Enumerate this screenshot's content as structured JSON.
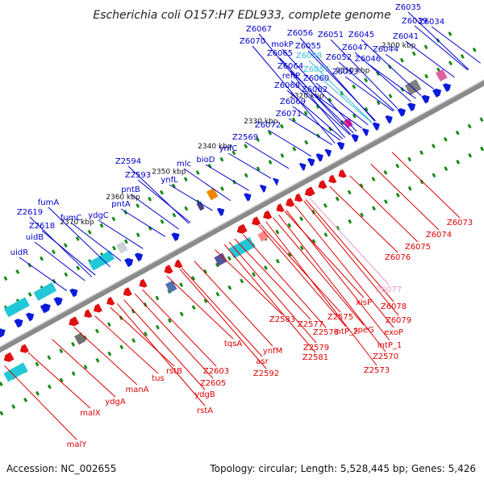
{
  "title": "Escherichia coli O157:H7 EDL933, complete genome",
  "footer": {
    "accession": "Accession: NC_002655",
    "summary": "Topology: circular; Length: 5,528,445 bp; Genes: 5,426"
  },
  "ticks": [
    "2300 kbp",
    "2310 kbp",
    "2320 kbp",
    "2330 kbp",
    "2340 kbp",
    "2350 kbp",
    "2360 kbp",
    "2370 kbp"
  ],
  "colors": {
    "forward_label": "#0000cc",
    "reverse_label": "#dd0000",
    "pseudo_forward": "#33bbdd",
    "pseudo_reverse": "#ee99cc",
    "backbone": "#888888"
  },
  "forward_genes": [
    {
      "name": "Z6035"
    },
    {
      "name": "Z6034"
    },
    {
      "name": "Z6039"
    },
    {
      "name": "Z6041"
    },
    {
      "name": "Z6044"
    },
    {
      "name": "Z6045"
    },
    {
      "name": "Z6046"
    },
    {
      "name": "Z6047"
    },
    {
      "name": "Z6051"
    },
    {
      "name": "Z6052"
    },
    {
      "name": "Z6053"
    },
    {
      "name": "Z6056"
    },
    {
      "name": "Z6055"
    },
    {
      "name": "Z6058",
      "pseudo": true
    },
    {
      "name": "Z6057",
      "pseudo": true
    },
    {
      "name": "Z6067"
    },
    {
      "name": "Z6070"
    },
    {
      "name": "mokP"
    },
    {
      "name": "Z6065"
    },
    {
      "name": "Z6064"
    },
    {
      "name": "renP"
    },
    {
      "name": "Z6060"
    },
    {
      "name": "Z6068"
    },
    {
      "name": "Z6062"
    },
    {
      "name": "Z6069"
    },
    {
      "name": "Z6071"
    },
    {
      "name": "Z6072"
    },
    {
      "name": "Z2569"
    },
    {
      "name": "ynfC"
    },
    {
      "name": "bioD"
    },
    {
      "name": "mlc"
    },
    {
      "name": "ynfL"
    },
    {
      "name": "Z2594"
    },
    {
      "name": "Z2593"
    },
    {
      "name": "pntB"
    },
    {
      "name": "pntA"
    },
    {
      "name": "fumA"
    },
    {
      "name": "fumC"
    },
    {
      "name": "ydgC"
    },
    {
      "name": "Z2619"
    },
    {
      "name": "Z2618"
    },
    {
      "name": "uidB"
    },
    {
      "name": "uidR"
    }
  ],
  "reverse_genes": [
    {
      "name": "Z6073"
    },
    {
      "name": "Z6074"
    },
    {
      "name": "Z6075"
    },
    {
      "name": "Z6076"
    },
    {
      "name": "Z6077",
      "pseudo": true
    },
    {
      "name": "xisP"
    },
    {
      "name": "Z6078"
    },
    {
      "name": "Z6079"
    },
    {
      "name": "Z2575"
    },
    {
      "name": "intP_2"
    },
    {
      "name": "speG"
    },
    {
      "name": "exoP"
    },
    {
      "name": "intP_1"
    },
    {
      "name": "Z2570"
    },
    {
      "name": "Z2573"
    },
    {
      "name": "Z2583"
    },
    {
      "name": "Z2577"
    },
    {
      "name": "Z2576"
    },
    {
      "name": "Z2579"
    },
    {
      "name": "Z2581"
    },
    {
      "name": "ynfM"
    },
    {
      "name": "tqsA"
    },
    {
      "name": "asr"
    },
    {
      "name": "Z2592"
    },
    {
      "name": "Z2603"
    },
    {
      "name": "Z2605"
    },
    {
      "name": "ydgB"
    },
    {
      "name": "rstB"
    },
    {
      "name": "rstA"
    },
    {
      "name": "tus"
    },
    {
      "name": "manA"
    },
    {
      "name": "ydgA"
    },
    {
      "name": "malX"
    },
    {
      "name": "malY"
    }
  ]
}
